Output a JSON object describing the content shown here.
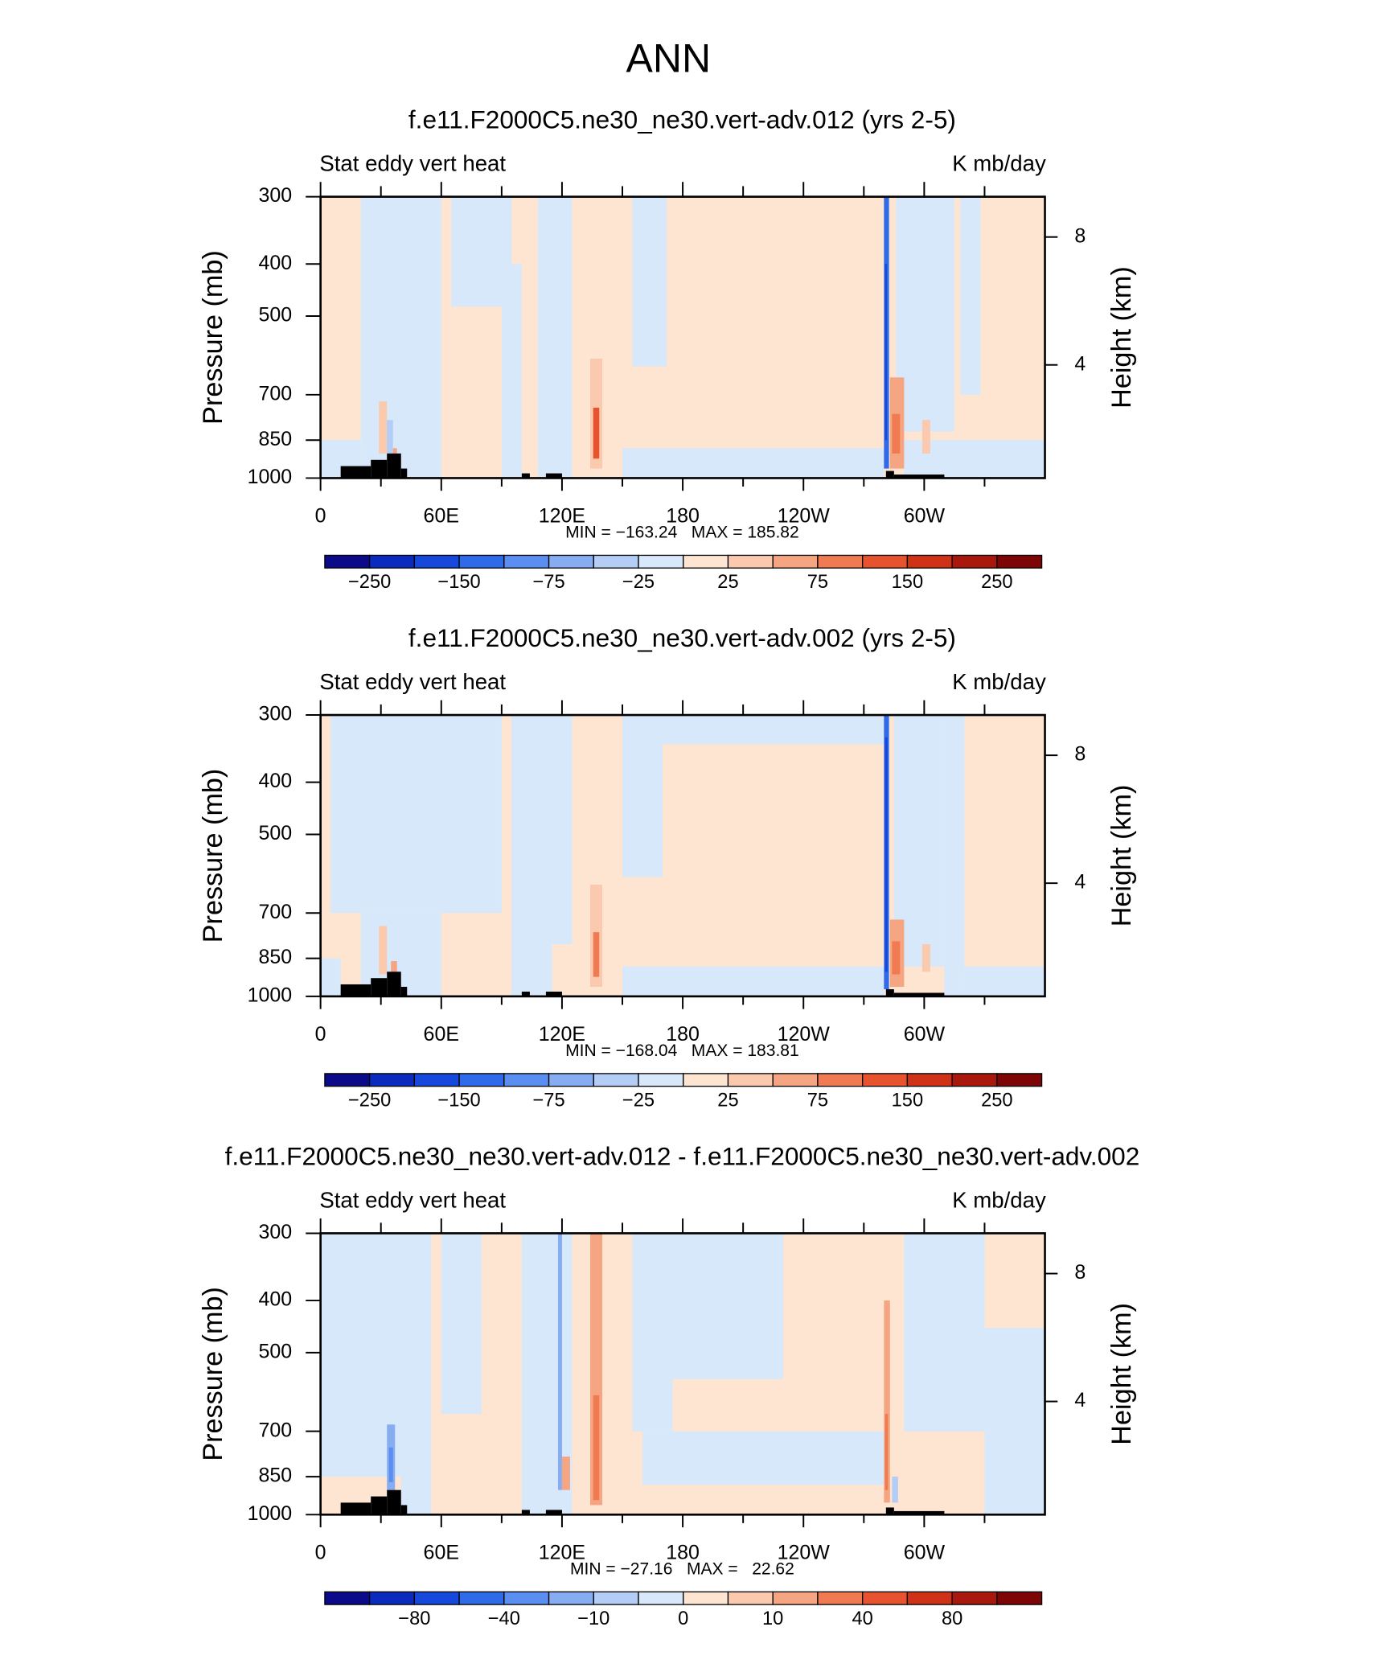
{
  "title": "ANN",
  "chart_data": [
    {
      "type": "contour",
      "title": "f.e11.F2000C5.ne30_ne30.vert-adv.012 (yrs 2-5)",
      "left_string": "Stat eddy vert heat",
      "right_string": "K mb/day",
      "ylabel": "Pressure (mb)",
      "y2label": "Height (km)",
      "minmax": "MIN = −163.24   MAX = 185.82",
      "xlim": [
        0,
        360
      ],
      "xticks": [
        0,
        {
          "value": 60,
          "label": "60E"
        },
        {
          "value": 120,
          "label": "120E"
        },
        180,
        {
          "value": 240,
          "label": "120W"
        },
        {
          "value": 300,
          "label": "60W"
        }
      ],
      "xminorticks": [
        30,
        90,
        150,
        210,
        270,
        330
      ],
      "ylim": [
        300,
        1000
      ],
      "ylog": true,
      "yticks": [
        300,
        400,
        500,
        700,
        850,
        1000
      ],
      "y2lim": [
        0.46,
        9.26
      ],
      "y2ticks": [
        4,
        8
      ],
      "colors": [
        "#0b0b8a",
        "#0a2bbd",
        "#1648dc",
        "#2f6ae8",
        "#5a8ef0",
        "#86acf2",
        "#b3cdf7",
        "#d7e8fb",
        "#fde5d2",
        "#fbc9ad",
        "#f6a582",
        "#f07a52",
        "#e7522f",
        "#cf3216",
        "#a8180c",
        "#7d0505"
      ],
      "levels": [
        -250,
        -200,
        -150,
        -100,
        -75,
        -50,
        -25,
        0,
        25,
        50,
        75,
        100,
        150,
        200,
        250
      ],
      "colorbar_ticks": [
        {
          "value": -250,
          "label": "−250"
        },
        {
          "value": -150,
          "label": "−150"
        },
        {
          "value": -75,
          "label": "−75"
        },
        {
          "value": -25,
          "label": "−25"
        },
        25,
        75,
        150,
        250
      ],
      "cells": [
        {
          "lon": [
            0,
            360
          ],
          "p": [
            300,
            1000
          ],
          "value": 10
        },
        {
          "lon": [
            20,
            60
          ],
          "p": [
            300,
            1000
          ],
          "value": -10
        },
        {
          "lon": [
            0,
            20
          ],
          "p": [
            850,
            1000
          ],
          "value": -10
        },
        {
          "lon": [
            65,
            95
          ],
          "p": [
            300,
            480
          ],
          "value": -10
        },
        {
          "lon": [
            90,
            100
          ],
          "p": [
            400,
            1000
          ],
          "value": -10
        },
        {
          "lon": [
            108,
            125
          ],
          "p": [
            300,
            1000
          ],
          "value": -10
        },
        {
          "lon": [
            155,
            172
          ],
          "p": [
            300,
            620
          ],
          "value": -10
        },
        {
          "lon": [
            150,
            280
          ],
          "p": [
            880,
            1000
          ],
          "value": -10
        },
        {
          "lon": [
            286,
            315
          ],
          "p": [
            300,
            820
          ],
          "value": -10
        },
        {
          "lon": [
            318,
            328
          ],
          "p": [
            300,
            700
          ],
          "value": -10
        },
        {
          "lon": [
            290,
            360
          ],
          "p": [
            850,
            1000
          ],
          "value": -10
        },
        {
          "lon": [
            280,
            282.5
          ],
          "p": [
            300,
            960
          ],
          "value": -120
        },
        {
          "lon": [
            280.5,
            281.5
          ],
          "p": [
            400,
            850
          ],
          "value": -160
        },
        {
          "lon": [
            283,
            290
          ],
          "p": [
            650,
            960
          ],
          "value": 50
        },
        {
          "lon": [
            284,
            288
          ],
          "p": [
            760,
            900
          ],
          "value": 80
        },
        {
          "lon": [
            299,
            303
          ],
          "p": [
            780,
            900
          ],
          "value": 40
        },
        {
          "lon": [
            134,
            140
          ],
          "p": [
            600,
            960
          ],
          "value": 40
        },
        {
          "lon": [
            135.5,
            138.5
          ],
          "p": [
            740,
            920
          ],
          "value": 100
        },
        {
          "lon": [
            29,
            33
          ],
          "p": [
            720,
            900
          ],
          "value": 40
        },
        {
          "lon": [
            33,
            36
          ],
          "p": [
            780,
            900
          ],
          "value": -40
        },
        {
          "lon": [
            36,
            38
          ],
          "p": [
            880,
            960
          ],
          "value": 60
        }
      ],
      "terrain": [
        {
          "lon": [
            10,
            25
          ],
          "p": 950
        },
        {
          "lon": [
            25,
            33
          ],
          "p": 925
        },
        {
          "lon": [
            33,
            40
          ],
          "p": 900
        },
        {
          "lon": [
            40,
            43
          ],
          "p": 960
        },
        {
          "lon": [
            100,
            104
          ],
          "p": 980
        },
        {
          "lon": [
            112,
            120
          ],
          "p": 980
        },
        {
          "lon": [
            281,
            285
          ],
          "p": 970
        },
        {
          "lon": [
            285,
            310
          ],
          "p": 985
        }
      ]
    },
    {
      "type": "contour",
      "title": "f.e11.F2000C5.ne30_ne30.vert-adv.002 (yrs 2-5)",
      "left_string": "Stat eddy vert heat",
      "right_string": "K mb/day",
      "ylabel": "Pressure (mb)",
      "y2label": "Height (km)",
      "minmax": "MIN = −168.04   MAX = 183.81",
      "xlim": [
        0,
        360
      ],
      "xticks": [
        0,
        {
          "value": 60,
          "label": "60E"
        },
        {
          "value": 120,
          "label": "120E"
        },
        180,
        {
          "value": 240,
          "label": "120W"
        },
        {
          "value": 300,
          "label": "60W"
        }
      ],
      "xminorticks": [
        30,
        90,
        150,
        210,
        270,
        330
      ],
      "ylim": [
        300,
        1000
      ],
      "ylog": true,
      "yticks": [
        300,
        400,
        500,
        700,
        850,
        1000
      ],
      "y2lim": [
        0.46,
        9.26
      ],
      "y2ticks": [
        4,
        8
      ],
      "colors": [
        "#0b0b8a",
        "#0a2bbd",
        "#1648dc",
        "#2f6ae8",
        "#5a8ef0",
        "#86acf2",
        "#b3cdf7",
        "#d7e8fb",
        "#fde5d2",
        "#fbc9ad",
        "#f6a582",
        "#f07a52",
        "#e7522f",
        "#cf3216",
        "#a8180c",
        "#7d0505"
      ],
      "levels": [
        -250,
        -200,
        -150,
        -100,
        -75,
        -50,
        -25,
        0,
        25,
        50,
        75,
        100,
        150,
        200,
        250
      ],
      "colorbar_ticks": [
        {
          "value": -250,
          "label": "−250"
        },
        {
          "value": -150,
          "label": "−150"
        },
        {
          "value": -75,
          "label": "−75"
        },
        {
          "value": -25,
          "label": "−25"
        },
        25,
        75,
        150,
        250
      ],
      "cells": [
        {
          "lon": [
            0,
            360
          ],
          "p": [
            300,
            1000
          ],
          "value": 10
        },
        {
          "lon": [
            5,
            90
          ],
          "p": [
            300,
            700
          ],
          "value": -10
        },
        {
          "lon": [
            20,
            60
          ],
          "p": [
            700,
            1000
          ],
          "value": -10
        },
        {
          "lon": [
            0,
            10
          ],
          "p": [
            850,
            1000
          ],
          "value": -10
        },
        {
          "lon": [
            95,
            115
          ],
          "p": [
            300,
            1000
          ],
          "value": -10
        },
        {
          "lon": [
            108,
            125
          ],
          "p": [
            300,
            800
          ],
          "value": -10
        },
        {
          "lon": [
            150,
            280
          ],
          "p": [
            880,
            1000
          ],
          "value": -10
        },
        {
          "lon": [
            150,
            170
          ],
          "p": [
            300,
            600
          ],
          "value": -10
        },
        {
          "lon": [
            170,
            280
          ],
          "p": [
            300,
            340
          ],
          "value": -10
        },
        {
          "lon": [
            285,
            310
          ],
          "p": [
            300,
            880
          ],
          "value": -10
        },
        {
          "lon": [
            310,
            320
          ],
          "p": [
            300,
            1000
          ],
          "value": -10
        },
        {
          "lon": [
            320,
            360
          ],
          "p": [
            880,
            1000
          ],
          "value": -10
        },
        {
          "lon": [
            280,
            282.5
          ],
          "p": [
            300,
            970
          ],
          "value": -130
        },
        {
          "lon": [
            280.5,
            281.8
          ],
          "p": [
            330,
            900
          ],
          "value": -170
        },
        {
          "lon": [
            283,
            290
          ],
          "p": [
            720,
            960
          ],
          "value": 50
        },
        {
          "lon": [
            284,
            288
          ],
          "p": [
            790,
            910
          ],
          "value": 80
        },
        {
          "lon": [
            299,
            303
          ],
          "p": [
            800,
            900
          ],
          "value": 40
        },
        {
          "lon": [
            134,
            140
          ],
          "p": [
            620,
            960
          ],
          "value": 40
        },
        {
          "lon": [
            135.5,
            138.5
          ],
          "p": [
            760,
            920
          ],
          "value": 90
        },
        {
          "lon": [
            29,
            33
          ],
          "p": [
            740,
            910
          ],
          "value": 40
        },
        {
          "lon": [
            35,
            38
          ],
          "p": [
            860,
            960
          ],
          "value": 60
        }
      ],
      "terrain": [
        {
          "lon": [
            10,
            25
          ],
          "p": 950
        },
        {
          "lon": [
            25,
            33
          ],
          "p": 925
        },
        {
          "lon": [
            33,
            40
          ],
          "p": 900
        },
        {
          "lon": [
            40,
            43
          ],
          "p": 960
        },
        {
          "lon": [
            100,
            104
          ],
          "p": 980
        },
        {
          "lon": [
            112,
            120
          ],
          "p": 980
        },
        {
          "lon": [
            281,
            285
          ],
          "p": 970
        },
        {
          "lon": [
            285,
            310
          ],
          "p": 985
        }
      ]
    },
    {
      "type": "contour",
      "title": "f.e11.F2000C5.ne30_ne30.vert-adv.012 - f.e11.F2000C5.ne30_ne30.vert-adv.002",
      "left_string": "Stat eddy vert heat",
      "right_string": "K mb/day",
      "ylabel": "Pressure (mb)",
      "y2label": "Height (km)",
      "minmax": "MIN = −27.16   MAX =   22.62",
      "xlim": [
        0,
        360
      ],
      "xticks": [
        0,
        {
          "value": 60,
          "label": "60E"
        },
        {
          "value": 120,
          "label": "120E"
        },
        180,
        {
          "value": 240,
          "label": "120W"
        },
        {
          "value": 300,
          "label": "60W"
        }
      ],
      "xminorticks": [
        30,
        90,
        150,
        210,
        270,
        330
      ],
      "ylim": [
        300,
        1000
      ],
      "ylog": true,
      "yticks": [
        300,
        400,
        500,
        700,
        850,
        1000
      ],
      "y2lim": [
        0.46,
        9.26
      ],
      "y2ticks": [
        4,
        8
      ],
      "colors": [
        "#0b0b8a",
        "#0a2bbd",
        "#1648dc",
        "#2f6ae8",
        "#5a8ef0",
        "#86acf2",
        "#b3cdf7",
        "#d7e8fb",
        "#fde5d2",
        "#fbc9ad",
        "#f6a582",
        "#f07a52",
        "#e7522f",
        "#cf3216",
        "#a8180c",
        "#7d0505"
      ],
      "levels": [
        -100,
        -80,
        -60,
        -40,
        -20,
        -10,
        -5,
        0,
        5,
        10,
        20,
        40,
        60,
        80,
        100
      ],
      "colorbar_ticks": [
        {
          "value": -80,
          "label": "−80"
        },
        {
          "value": -40,
          "label": "−40"
        },
        {
          "value": -10,
          "label": "−10"
        },
        0,
        10,
        40,
        80
      ],
      "cells": [
        {
          "lon": [
            0,
            360
          ],
          "p": [
            300,
            1000
          ],
          "value": 3
        },
        {
          "lon": [
            0,
            55
          ],
          "p": [
            300,
            1000
          ],
          "value": -3
        },
        {
          "lon": [
            60,
            80
          ],
          "p": [
            300,
            650
          ],
          "value": -3
        },
        {
          "lon": [
            100,
            125
          ],
          "p": [
            300,
            1000
          ],
          "value": -3
        },
        {
          "lon": [
            155,
            175
          ],
          "p": [
            300,
            700
          ],
          "value": -3
        },
        {
          "lon": [
            160,
            280
          ],
          "p": [
            700,
            880
          ],
          "value": -3
        },
        {
          "lon": [
            175,
            230
          ],
          "p": [
            300,
            560
          ],
          "value": -3
        },
        {
          "lon": [
            290,
            330
          ],
          "p": [
            300,
            700
          ],
          "value": -3
        },
        {
          "lon": [
            330,
            360
          ],
          "p": [
            450,
            1000
          ],
          "value": -3
        },
        {
          "lon": [
            0,
            40
          ],
          "p": [
            850,
            1000
          ],
          "value": 3
        },
        {
          "lon": [
            118,
            120
          ],
          "p": [
            300,
            900
          ],
          "value": -15
        },
        {
          "lon": [
            134,
            140
          ],
          "p": [
            300,
            960
          ],
          "value": 10
        },
        {
          "lon": [
            135.5,
            138.5
          ],
          "p": [
            600,
            940
          ],
          "value": 25
        },
        {
          "lon": [
            120,
            124
          ],
          "p": [
            780,
            900
          ],
          "value": 12
        },
        {
          "lon": [
            280,
            283
          ],
          "p": [
            400,
            950
          ],
          "value": 12
        },
        {
          "lon": [
            280.5,
            282
          ],
          "p": [
            650,
            900
          ],
          "value": 30
        },
        {
          "lon": [
            33,
            37
          ],
          "p": [
            680,
            900
          ],
          "value": -15
        },
        {
          "lon": [
            34,
            36
          ],
          "p": [
            750,
            870
          ],
          "value": -30
        },
        {
          "lon": [
            284,
            287
          ],
          "p": [
            850,
            950
          ],
          "value": -10
        }
      ],
      "terrain": [
        {
          "lon": [
            10,
            25
          ],
          "p": 950
        },
        {
          "lon": [
            25,
            33
          ],
          "p": 925
        },
        {
          "lon": [
            33,
            40
          ],
          "p": 900
        },
        {
          "lon": [
            40,
            43
          ],
          "p": 960
        },
        {
          "lon": [
            100,
            104
          ],
          "p": 980
        },
        {
          "lon": [
            112,
            120
          ],
          "p": 980
        },
        {
          "lon": [
            281,
            285
          ],
          "p": 970
        },
        {
          "lon": [
            285,
            310
          ],
          "p": 985
        }
      ]
    }
  ]
}
